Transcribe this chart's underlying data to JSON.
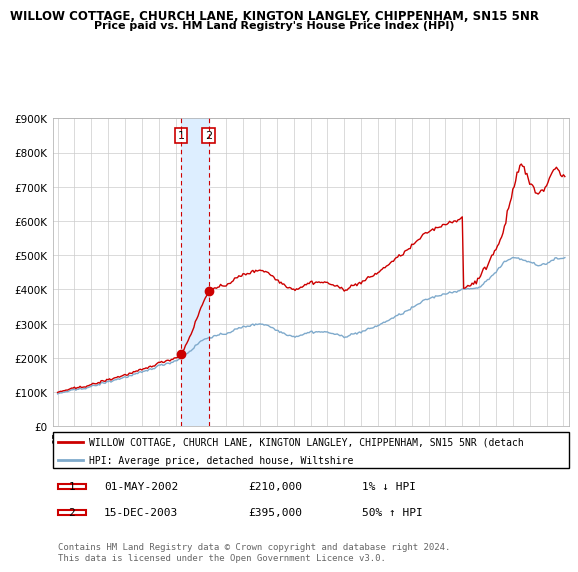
{
  "title1": "WILLOW COTTAGE, CHURCH LANE, KINGTON LANGLEY, CHIPPENHAM, SN15 5NR",
  "title2": "Price paid vs. HM Land Registry's House Price Index (HPI)",
  "legend_line1": "WILLOW COTTAGE, CHURCH LANE, KINGTON LANGLEY, CHIPPENHAM, SN15 5NR (detach",
  "legend_line2": "HPI: Average price, detached house, Wiltshire",
  "footer": "Contains HM Land Registry data © Crown copyright and database right 2024.\nThis data is licensed under the Open Government Licence v3.0.",
  "transaction1": {
    "label": "1",
    "date": "01-MAY-2002",
    "price": "£210,000",
    "hpi": "1% ↓ HPI",
    "x": 2002.33
  },
  "transaction2": {
    "label": "2",
    "date": "15-DEC-2003",
    "price": "£395,000",
    "hpi": "50% ↑ HPI",
    "x": 2003.96
  },
  "point1_value": 210000,
  "point2_value": 395000,
  "red_color": "#cc0000",
  "blue_color": "#7faacc",
  "highlight_color": "#ddeeff",
  "vline_color": "#cc0000",
  "grid_color": "#cccccc"
}
